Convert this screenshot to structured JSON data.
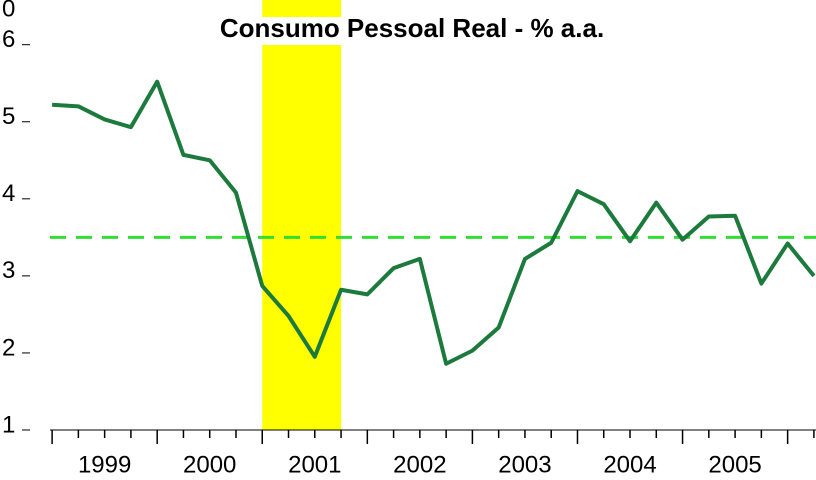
{
  "chart_data": {
    "type": "line",
    "title": "Consumo Pessoal Real - % a.a.",
    "annotations": [
      "0"
    ],
    "x": [
      1999.0,
      1999.25,
      1999.5,
      1999.75,
      2000.0,
      2000.25,
      2000.5,
      2000.75,
      2001.0,
      2001.25,
      2001.5,
      2001.75,
      2002.0,
      2002.25,
      2002.5,
      2002.75,
      2003.0,
      2003.25,
      2003.5,
      2003.75,
      2004.0,
      2004.25,
      2004.5,
      2004.75,
      2005.0,
      2005.25,
      2005.5,
      2005.75,
      2006.0,
      2006.25
    ],
    "series": [
      {
        "name": "Consumo",
        "color": "#1b7a3c",
        "values": [
          5.22,
          5.2,
          5.03,
          4.93,
          5.52,
          4.57,
          4.5,
          4.08,
          2.87,
          2.48,
          1.95,
          2.82,
          2.76,
          3.1,
          3.22,
          1.86,
          2.03,
          2.33,
          3.22,
          3.43,
          4.1,
          3.93,
          3.45,
          3.95,
          3.47,
          3.77,
          3.78,
          2.9,
          3.42,
          3.0
        ]
      }
    ],
    "reference_line": {
      "value": 3.5,
      "color": "#33dd33"
    },
    "shaded_band": {
      "x": [
        2001.0,
        2001.75
      ],
      "color": "#ffff00"
    },
    "xlim": [
      1998.98,
      2006.27
    ],
    "ylim": [
      1,
      6.58
    ],
    "yticks": [
      1,
      2,
      3,
      4,
      5,
      6
    ],
    "xticks": [
      1999,
      2000,
      2001,
      2002,
      2003,
      2004,
      2005,
      2006
    ],
    "xtick_labels": [
      "1999",
      "2000",
      "2001",
      "2002",
      "2003",
      "2004",
      "2005"
    ],
    "minor_xticks": [
      1999.25,
      1999.5,
      1999.75,
      2000.25,
      2000.5,
      2000.75,
      2001.25,
      2001.5,
      2001.75,
      2002.25,
      2002.5,
      2002.75,
      2003.25,
      2003.5,
      2003.75,
      2004.25,
      2004.5,
      2004.75,
      2005.25,
      2005.5,
      2005.75,
      2006.25
    ]
  }
}
